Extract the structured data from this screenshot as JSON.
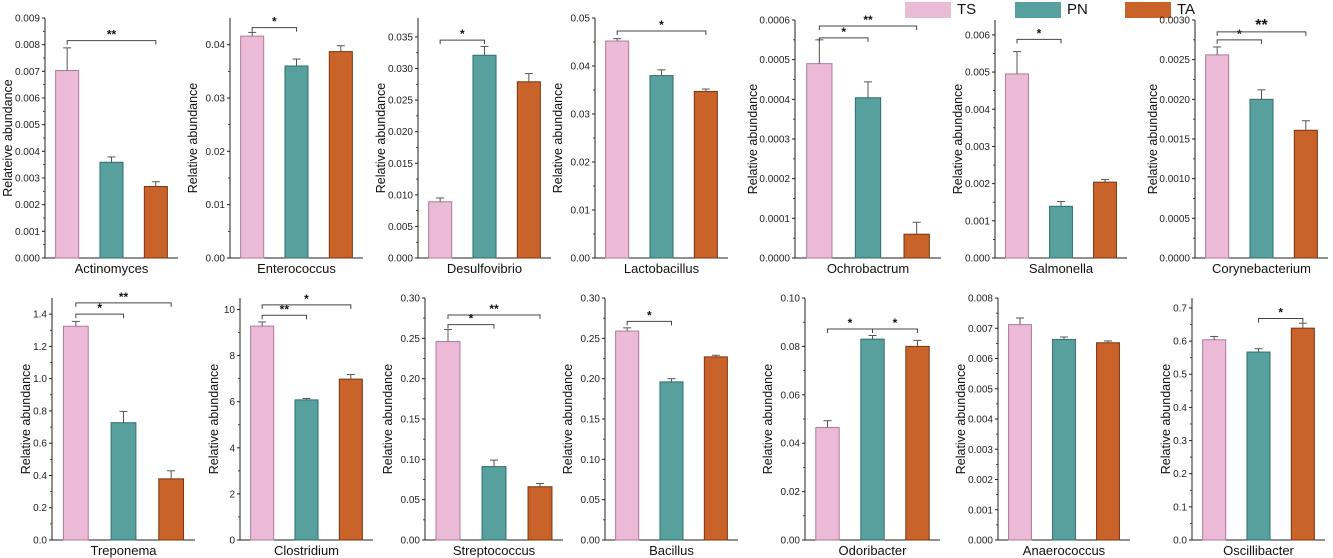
{
  "legend": [
    {
      "label": "TS",
      "color": "#ebbad7"
    },
    {
      "label": "PN",
      "color": "#58a09e"
    },
    {
      "label": "TA",
      "color": "#c9632a"
    }
  ],
  "chart_data": [
    {
      "type": "bar",
      "title": "",
      "xlabel": "Actinomyces",
      "ylabel": "Relateive abundance",
      "categories": [
        "TS",
        "PN",
        "TA"
      ],
      "values": [
        0.00703,
        0.00359,
        0.00268
      ],
      "errors": [
        0.00085,
        0.0002,
        0.00018
      ],
      "ylim": [
        0,
        0.009
      ],
      "yticks": [
        "0.000",
        "0.001",
        "0.002",
        "0.003",
        "0.004",
        "0.005",
        "0.006",
        "0.007",
        "0.008",
        "0.009"
      ],
      "sig": [
        {
          "from": 0,
          "to": 2,
          "label": "**",
          "level": 0.00815
        }
      ]
    },
    {
      "type": "bar",
      "title": "",
      "xlabel": "Enterococcus",
      "ylabel": "Relative abundance",
      "categories": [
        "TS",
        "PN",
        "TA"
      ],
      "values": [
        0.0416,
        0.036,
        0.0387
      ],
      "errors": [
        0.0007,
        0.0013,
        0.0011
      ],
      "ylim": [
        0,
        0.045
      ],
      "yticks": [
        "0.00",
        "0.01",
        "0.02",
        "0.03",
        "0.04"
      ],
      "sig": [
        {
          "from": 0,
          "to": 1,
          "label": "*",
          "level": 0.0432
        }
      ]
    },
    {
      "type": "bar",
      "title": "",
      "xlabel": "Desulfovibrio",
      "ylabel": "Relative abundance",
      "categories": [
        "TS",
        "PN",
        "TA"
      ],
      "values": [
        0.0089,
        0.0321,
        0.0279
      ],
      "errors": [
        0.0006,
        0.0014,
        0.0013
      ],
      "ylim": [
        0,
        0.038
      ],
      "yticks": [
        "0.000",
        "0.005",
        "0.010",
        "0.015",
        "0.020",
        "0.025",
        "0.030",
        "0.035"
      ],
      "sig": [
        {
          "from": 0,
          "to": 1,
          "label": "*",
          "level": 0.0345
        }
      ]
    },
    {
      "type": "bar",
      "title": "",
      "xlabel": "Lactobacillus",
      "ylabel": "Relative abundance",
      "categories": [
        "TS",
        "PN",
        "TA"
      ],
      "values": [
        0.0452,
        0.038,
        0.0347
      ],
      "errors": [
        0.0005,
        0.0012,
        0.0005
      ],
      "ylim": [
        0,
        0.05
      ],
      "yticks": [
        "0.00",
        "0.01",
        "0.02",
        "0.03",
        "0.04",
        "0.05"
      ],
      "sig": [
        {
          "from": 0,
          "to": 2,
          "label": "*",
          "level": 0.0473
        }
      ]
    },
    {
      "type": "bar",
      "title": "",
      "xlabel": "Ochrobactrum",
      "ylabel": "Relative abundance",
      "categories": [
        "TS",
        "PN",
        "TA"
      ],
      "values": [
        0.00049,
        0.000404,
        6e-05
      ],
      "errors": [
        6e-05,
        4e-05,
        3e-05
      ],
      "ylim": [
        0,
        0.0006
      ],
      "yticks": [
        "0.0000",
        "0.0001",
        "0.0002",
        "0.0003",
        "0.0004",
        "0.0005",
        "0.0006"
      ],
      "sig": [
        {
          "from": 0,
          "to": 1,
          "label": "*",
          "level": 0.000555
        },
        {
          "from": 0,
          "to": 2,
          "label": "**",
          "level": 0.000585
        }
      ]
    },
    {
      "type": "bar",
      "title": "",
      "xlabel": "Salmonella",
      "ylabel": "Relative abundance",
      "categories": [
        "TS",
        "PN",
        "TA"
      ],
      "values": [
        0.00495,
        0.00139,
        0.00204
      ],
      "errors": [
        0.0006,
        0.00013,
        7e-05
      ],
      "ylim": [
        0,
        0.0064
      ],
      "yticks": [
        "0.000",
        "0.001",
        "0.002",
        "0.003",
        "0.004",
        "0.005",
        "0.006"
      ],
      "sig": [
        {
          "from": 0,
          "to": 1,
          "label": "*",
          "level": 0.00588
        }
      ]
    },
    {
      "type": "bar",
      "title": "",
      "xlabel": "Corynebacterium",
      "ylabel": "Relative abundance",
      "categories": [
        "TS",
        "PN",
        "TA"
      ],
      "values": [
        0.00256,
        0.002,
        0.00161
      ],
      "errors": [
        0.0001,
        0.00012,
        0.00012
      ],
      "ylim": [
        0,
        0.003
      ],
      "yticks": [
        "0.0000",
        "0.0005",
        "0.0010",
        "0.0015",
        "0.0020",
        "0.0025",
        "0.0030"
      ],
      "sig": [
        {
          "from": 0,
          "to": 1,
          "label": "*",
          "level": 0.00275
        },
        {
          "from": 0,
          "to": 2,
          "label": "**",
          "level": 0.00285
        }
      ]
    },
    {
      "type": "bar",
      "title": "",
      "xlabel": "Treponema",
      "ylabel": "Relative abundance",
      "categories": [
        "TS",
        "PN",
        "TA"
      ],
      "values": [
        1.325,
        0.727,
        0.379
      ],
      "errors": [
        0.03,
        0.07,
        0.05
      ],
      "ylim": [
        0,
        1.5
      ],
      "yticks": [
        "0.0",
        "0.2",
        "0.4",
        "0.6",
        "0.8",
        "1.0",
        "1.2",
        "1.4"
      ],
      "sig": [
        {
          "from": 0,
          "to": 1,
          "label": "*",
          "level": 1.4
        },
        {
          "from": 0,
          "to": 2,
          "label": "**",
          "level": 1.47
        }
      ]
    },
    {
      "type": "bar",
      "title": "",
      "xlabel": "Clostridium",
      "ylabel": "Relative abundance",
      "categories": [
        "TS",
        "PN",
        "TA"
      ],
      "values": [
        9.28,
        6.08,
        6.98
      ],
      "errors": [
        0.18,
        0.06,
        0.2
      ],
      "ylim": [
        0,
        10.5
      ],
      "yticks": [
        "0",
        "2",
        "4",
        "6",
        "8",
        "10"
      ],
      "sig": [
        {
          "from": 0,
          "to": 1,
          "label": "**",
          "level": 9.75
        },
        {
          "from": 0,
          "to": 2,
          "label": "*",
          "level": 10.2
        }
      ]
    },
    {
      "type": "bar",
      "title": "",
      "xlabel": "Streptococcus",
      "ylabel": "Relative abundance",
      "categories": [
        "TS",
        "PN",
        "TA"
      ],
      "values": [
        0.246,
        0.091,
        0.066
      ],
      "errors": [
        0.015,
        0.008,
        0.004
      ],
      "ylim": [
        0,
        0.3
      ],
      "yticks": [
        "0.00",
        "0.05",
        "0.10",
        "0.15",
        "0.20",
        "0.25",
        "0.30"
      ],
      "sig": [
        {
          "from": 0,
          "to": 1,
          "label": "*",
          "level": 0.267
        },
        {
          "from": 0,
          "to": 2,
          "label": "**",
          "level": 0.279
        }
      ]
    },
    {
      "type": "bar",
      "title": "",
      "xlabel": "Bacillus",
      "ylabel": "Relative abundance",
      "categories": [
        "TS",
        "PN",
        "TA"
      ],
      "values": [
        0.259,
        0.196,
        0.227
      ],
      "errors": [
        0.004,
        0.004,
        0.002
      ],
      "ylim": [
        0,
        0.3
      ],
      "yticks": [
        "0.00",
        "0.05",
        "0.10",
        "0.15",
        "0.20",
        "0.25",
        "0.30"
      ],
      "sig": [
        {
          "from": 0,
          "to": 1,
          "label": "*",
          "level": 0.271
        }
      ]
    },
    {
      "type": "bar",
      "title": "",
      "xlabel": "Odoribacter",
      "ylabel": "Relative abundance",
      "categories": [
        "TS",
        "PN",
        "TA"
      ],
      "values": [
        0.0465,
        0.083,
        0.08
      ],
      "errors": [
        0.0028,
        0.0015,
        0.0025
      ],
      "ylim": [
        0,
        0.1
      ],
      "yticks": [
        "0.00",
        "0.02",
        "0.04",
        "0.06",
        "0.08",
        "0.10"
      ],
      "sig": [
        {
          "from": 0,
          "to": 1,
          "label": "*",
          "level": 0.0872
        },
        {
          "from": 1,
          "to": 2,
          "label": "*",
          "level": 0.0872
        }
      ]
    },
    {
      "type": "bar",
      "title": "",
      "xlabel": "Anaerococcus",
      "ylabel": "Relative abundance",
      "categories": [
        "TS",
        "PN",
        "TA"
      ],
      "values": [
        0.00712,
        0.00663,
        0.00652
      ],
      "errors": [
        0.00022,
        8e-05,
        6e-05
      ],
      "ylim": [
        0,
        0.008
      ],
      "yticks": [
        "0.000",
        "0.001",
        "0.002",
        "0.003",
        "0.004",
        "0.005",
        "0.006",
        "0.007",
        "0.008"
      ],
      "sig": []
    },
    {
      "type": "bar",
      "title": "",
      "xlabel": "Oscillibacter",
      "ylabel": "Relative abundance",
      "categories": [
        "TS",
        "PN",
        "TA"
      ],
      "values": [
        0.604,
        0.567,
        0.639
      ],
      "errors": [
        0.01,
        0.01,
        0.015
      ],
      "ylim": [
        0,
        0.73
      ],
      "yticks": [
        "0.0",
        "0.1",
        "0.2",
        "0.3",
        "0.4",
        "0.5",
        "0.6",
        "0.7"
      ],
      "sig": [
        {
          "from": 1,
          "to": 2,
          "label": "*",
          "level": 0.668
        }
      ]
    }
  ]
}
